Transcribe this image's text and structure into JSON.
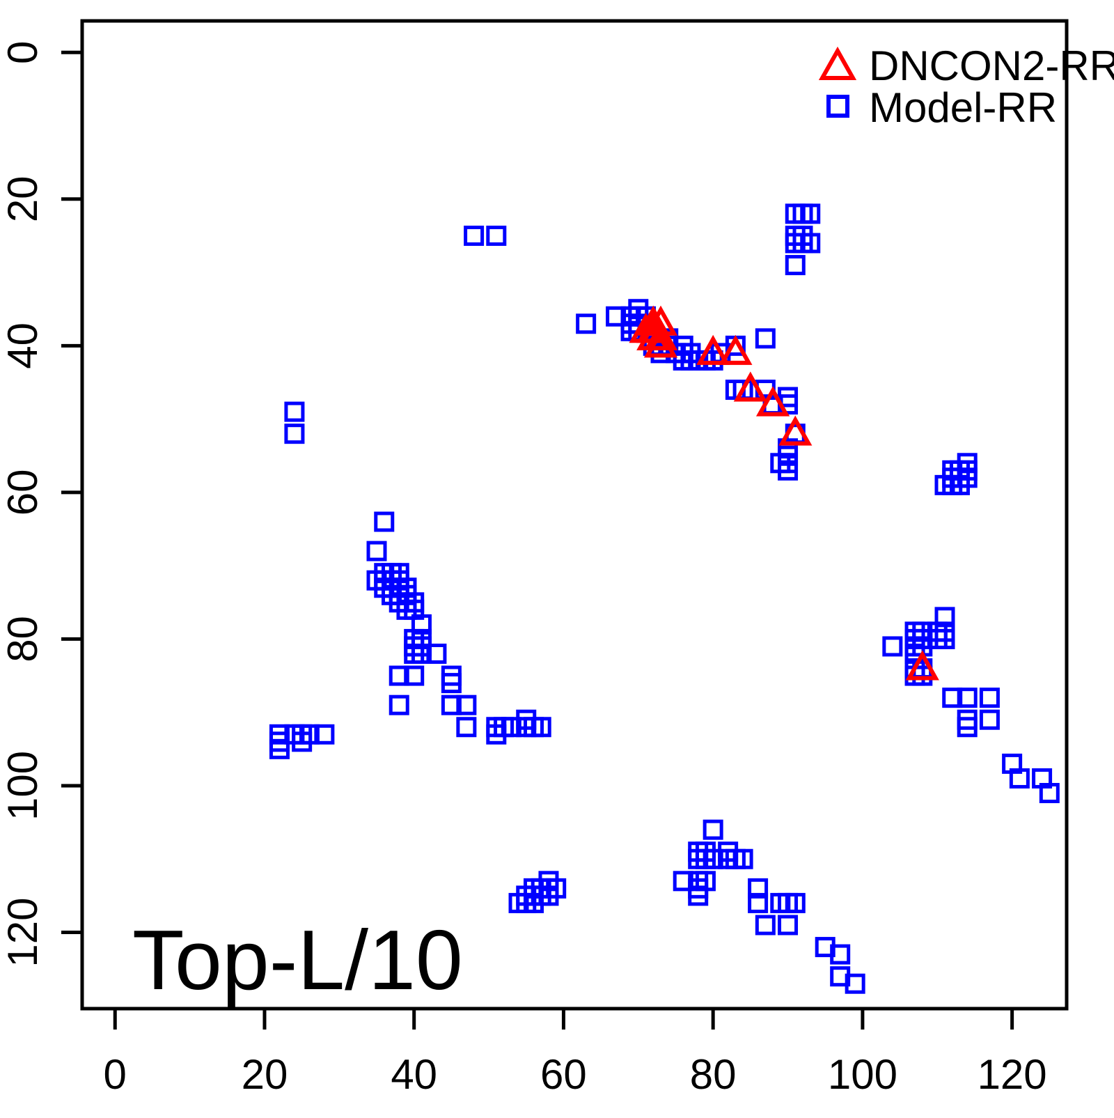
{
  "title": "Top-L/10",
  "legend": {
    "items": [
      {
        "label": "DNCON2-RR",
        "marker": "triangle",
        "color": "#FF0000"
      },
      {
        "label": "Model-RR",
        "marker": "square",
        "color": "#0000FF"
      }
    ]
  },
  "colors": {
    "axis": "#000000",
    "background": "#FFFFFF",
    "dncon2": "#FF0000",
    "model": "#0000FF"
  },
  "chart_data": {
    "type": "scatter",
    "title": "Top-L/10",
    "xlabel": "",
    "ylabel": "",
    "grid": false,
    "legend_position": "top-right",
    "x_ticks": [
      0,
      20,
      40,
      60,
      80,
      100,
      120
    ],
    "y_ticks": [
      0,
      20,
      40,
      60,
      80,
      100,
      120
    ],
    "xlim": [
      -4.4,
      127.3
    ],
    "ylim": [
      130.4,
      -4.3
    ],
    "y_axis_inverted": true,
    "series": [
      {
        "name": "Model-RR",
        "marker": "square",
        "color": "#0000FF",
        "points": [
          [
            48,
            25
          ],
          [
            51,
            25
          ],
          [
            91,
            22
          ],
          [
            92,
            22
          ],
          [
            93,
            22
          ],
          [
            91,
            25
          ],
          [
            92,
            25
          ],
          [
            91,
            26
          ],
          [
            92,
            26
          ],
          [
            93,
            26
          ],
          [
            91,
            29
          ],
          [
            63,
            37
          ],
          [
            67,
            36
          ],
          [
            70,
            35
          ],
          [
            69,
            36
          ],
          [
            70,
            36
          ],
          [
            71,
            36
          ],
          [
            69,
            37
          ],
          [
            70,
            37
          ],
          [
            69,
            38
          ],
          [
            70,
            38
          ],
          [
            72,
            39
          ],
          [
            74,
            39
          ],
          [
            72,
            40
          ],
          [
            74,
            40
          ],
          [
            73,
            41
          ],
          [
            75,
            41
          ],
          [
            76,
            40
          ],
          [
            76,
            41
          ],
          [
            77,
            41
          ],
          [
            76,
            42
          ],
          [
            77,
            42
          ],
          [
            78,
            42
          ],
          [
            79,
            42
          ],
          [
            80,
            42
          ],
          [
            83,
            40
          ],
          [
            87,
            39
          ],
          [
            81,
            41
          ],
          [
            83,
            46
          ],
          [
            84,
            46
          ],
          [
            87,
            46
          ],
          [
            90,
            47
          ],
          [
            88,
            48
          ],
          [
            90,
            48
          ],
          [
            91,
            52
          ],
          [
            90,
            54
          ],
          [
            90,
            55
          ],
          [
            90,
            56
          ],
          [
            90,
            57
          ],
          [
            89,
            56
          ],
          [
            24,
            49
          ],
          [
            24,
            52
          ],
          [
            114,
            56
          ],
          [
            112,
            57
          ],
          [
            113,
            57
          ],
          [
            114,
            57
          ],
          [
            112,
            58
          ],
          [
            113,
            58
          ],
          [
            114,
            58
          ],
          [
            111,
            59
          ],
          [
            112,
            59
          ],
          [
            113,
            59
          ],
          [
            36,
            64
          ],
          [
            35,
            68
          ],
          [
            36,
            71
          ],
          [
            37,
            71
          ],
          [
            38,
            71
          ],
          [
            35,
            72
          ],
          [
            36,
            72
          ],
          [
            37,
            72
          ],
          [
            38,
            72
          ],
          [
            36,
            73
          ],
          [
            37,
            73
          ],
          [
            38,
            73
          ],
          [
            39,
            73
          ],
          [
            37,
            74
          ],
          [
            38,
            74
          ],
          [
            39,
            74
          ],
          [
            38,
            75
          ],
          [
            39,
            75
          ],
          [
            40,
            75
          ],
          [
            39,
            76
          ],
          [
            40,
            76
          ],
          [
            41,
            78
          ],
          [
            40,
            80
          ],
          [
            41,
            80
          ],
          [
            40,
            81
          ],
          [
            41,
            81
          ],
          [
            40,
            82
          ],
          [
            41,
            82
          ],
          [
            43,
            82
          ],
          [
            38,
            85
          ],
          [
            40,
            85
          ],
          [
            45,
            85
          ],
          [
            45,
            86
          ],
          [
            38,
            89
          ],
          [
            45,
            89
          ],
          [
            47,
            89
          ],
          [
            47,
            92
          ],
          [
            22,
            93
          ],
          [
            22,
            94
          ],
          [
            22,
            95
          ],
          [
            24,
            93
          ],
          [
            25,
            93
          ],
          [
            26,
            93
          ],
          [
            25,
            94
          ],
          [
            28,
            93
          ],
          [
            51,
            92
          ],
          [
            52,
            92
          ],
          [
            53,
            92
          ],
          [
            55,
            91
          ],
          [
            55,
            92
          ],
          [
            56,
            92
          ],
          [
            57,
            92
          ],
          [
            51,
            93
          ],
          [
            104,
            81
          ],
          [
            107,
            79
          ],
          [
            108,
            79
          ],
          [
            107,
            80
          ],
          [
            108,
            80
          ],
          [
            107,
            81
          ],
          [
            108,
            81
          ],
          [
            107,
            82
          ],
          [
            111,
            77
          ],
          [
            110,
            79
          ],
          [
            111,
            79
          ],
          [
            110,
            80
          ],
          [
            111,
            80
          ],
          [
            107,
            84
          ],
          [
            108,
            84
          ],
          [
            107,
            85
          ],
          [
            108,
            85
          ],
          [
            112,
            88
          ],
          [
            114,
            88
          ],
          [
            117,
            88
          ],
          [
            114,
            91
          ],
          [
            114,
            92
          ],
          [
            117,
            91
          ],
          [
            120,
            97
          ],
          [
            121,
            99
          ],
          [
            124,
            99
          ],
          [
            125,
            101
          ],
          [
            80,
            106
          ],
          [
            78,
            109
          ],
          [
            79,
            109
          ],
          [
            78,
            110
          ],
          [
            79,
            110
          ],
          [
            80,
            110
          ],
          [
            82,
            109
          ],
          [
            82,
            110
          ],
          [
            83,
            110
          ],
          [
            84,
            110
          ],
          [
            76,
            113
          ],
          [
            78,
            113
          ],
          [
            79,
            113
          ],
          [
            78,
            114
          ],
          [
            78,
            115
          ],
          [
            86,
            114
          ],
          [
            86,
            116
          ],
          [
            89,
            116
          ],
          [
            90,
            116
          ],
          [
            91,
            116
          ],
          [
            87,
            119
          ],
          [
            90,
            119
          ],
          [
            95,
            122
          ],
          [
            97,
            123
          ],
          [
            97,
            126
          ],
          [
            99,
            127
          ],
          [
            58,
            113
          ],
          [
            56,
            114
          ],
          [
            57,
            114
          ],
          [
            58,
            114
          ],
          [
            59,
            114
          ],
          [
            55,
            115
          ],
          [
            56,
            115
          ],
          [
            57,
            115
          ],
          [
            58,
            115
          ],
          [
            54,
            116
          ],
          [
            55,
            116
          ],
          [
            56,
            116
          ]
        ]
      },
      {
        "name": "DNCON2-RR",
        "marker": "triangle",
        "color": "#FF0000",
        "points": [
          [
            72,
            37
          ],
          [
            73,
            37
          ],
          [
            71,
            38
          ],
          [
            72,
            38
          ],
          [
            72,
            39
          ],
          [
            73,
            39
          ],
          [
            73,
            40
          ],
          [
            80,
            41
          ],
          [
            83,
            41
          ],
          [
            85,
            46
          ],
          [
            88,
            48
          ],
          [
            91,
            52
          ],
          [
            108,
            84
          ]
        ]
      }
    ]
  }
}
